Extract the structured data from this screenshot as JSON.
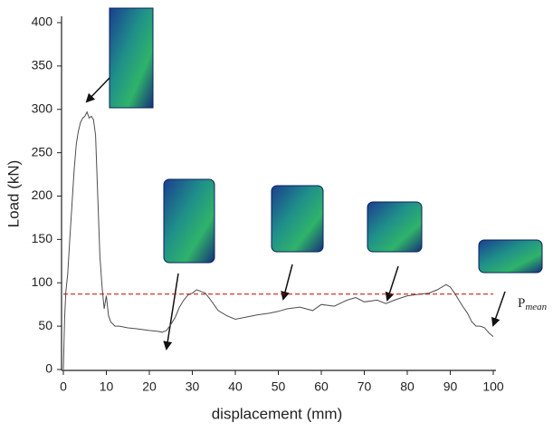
{
  "chart_data": {
    "type": "line",
    "x_label": "displacement (mm)",
    "y_label": "Load (kN)",
    "x": [
      0,
      0.3,
      0.6,
      1,
      1.5,
      2,
      2.5,
      3,
      3.5,
      4,
      4.5,
      5,
      5.5,
      6,
      6.5,
      7,
      7.5,
      8,
      8.5,
      9,
      9.5,
      10,
      10.5,
      11,
      12,
      13,
      15,
      17,
      20,
      22,
      23,
      24,
      25,
      26,
      27,
      28,
      29,
      30,
      31,
      32,
      33,
      34,
      35,
      36,
      38,
      40,
      42,
      45,
      48,
      50,
      52,
      55,
      58,
      60,
      63,
      66,
      68,
      70,
      73,
      75,
      77,
      80,
      83,
      85,
      87,
      89,
      90,
      91,
      92,
      93,
      94,
      95,
      96,
      97,
      98,
      99,
      100
    ],
    "series": [
      {
        "name": "load",
        "color": "#4d4d4d",
        "values": [
          0,
          60,
          90,
          110,
          150,
          190,
          230,
          260,
          275,
          285,
          290,
          292,
          297,
          290,
          292,
          288,
          270,
          200,
          130,
          95,
          70,
          85,
          62,
          55,
          50,
          50,
          48,
          47,
          45,
          44,
          43,
          45,
          52,
          60,
          72,
          80,
          86,
          88,
          92,
          90,
          88,
          82,
          75,
          68,
          62,
          58,
          60,
          63,
          65,
          67,
          70,
          72,
          68,
          75,
          73,
          80,
          83,
          78,
          80,
          76,
          80,
          85,
          87,
          88,
          92,
          98,
          95,
          88,
          80,
          72,
          65,
          55,
          50,
          50,
          48,
          42,
          38
        ]
      }
    ],
    "xlim": [
      0,
      100
    ],
    "ylim": [
      0,
      400
    ],
    "xticks": [
      0,
      10,
      20,
      30,
      40,
      50,
      60,
      70,
      80,
      90,
      100
    ],
    "yticks": [
      0,
      50,
      100,
      150,
      200,
      250,
      300,
      350,
      400
    ],
    "reference_line": {
      "value": 87,
      "color": "#cc0000",
      "label": "P",
      "label_subscript": "mean"
    }
  }
}
